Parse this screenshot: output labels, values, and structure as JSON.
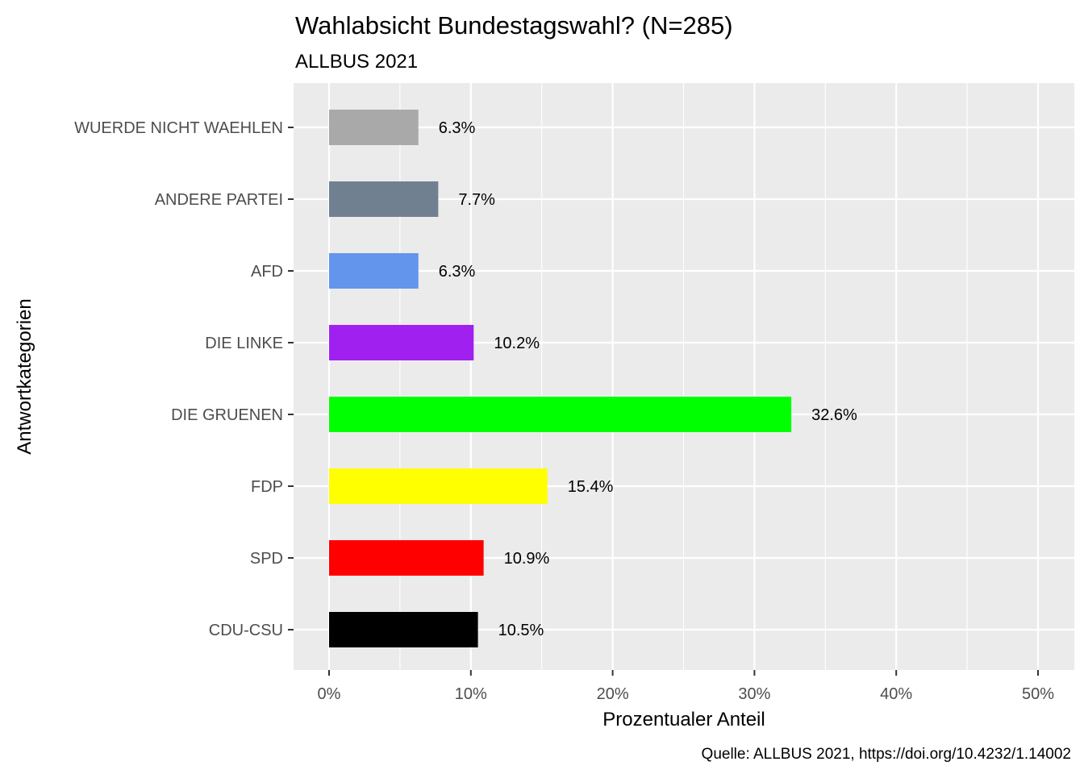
{
  "chart_data": {
    "type": "bar",
    "orientation": "horizontal",
    "title": "Wahlabsicht Bundestagswahl? (N=285)",
    "subtitle": "ALLBUS 2021",
    "xlabel": "Prozentualer Anteil",
    "ylabel": "Antwortkategorien",
    "caption": "Quelle: ALLBUS 2021, https://doi.org/10.4232/1.14002",
    "xlim": [
      0,
      0.5
    ],
    "x_ticks": [
      0,
      0.1,
      0.2,
      0.3,
      0.4,
      0.5
    ],
    "x_tick_labels": [
      "0%",
      "10%",
      "20%",
      "30%",
      "40%",
      "50%"
    ],
    "grid": true,
    "legend": "none",
    "categories": [
      "WUERDE NICHT WAEHLEN",
      "ANDERE PARTEI",
      "AFD",
      "DIE LINKE",
      "DIE GRUENEN",
      "FDP",
      "SPD",
      "CDU-CSU"
    ],
    "values": [
      0.063,
      0.077,
      0.063,
      0.102,
      0.326,
      0.154,
      0.109,
      0.105
    ],
    "data_labels": [
      "6.3%",
      "7.7%",
      "6.3%",
      "10.2%",
      "32.6%",
      "15.4%",
      "10.9%",
      "10.5%"
    ],
    "colors": [
      "#a9a9a9",
      "#708090",
      "#6495ed",
      "#a020f0",
      "#00ff00",
      "#ffff00",
      "#ff0000",
      "#000000"
    ],
    "panel_background": "#ebebeb",
    "grid_color": "#ffffff"
  }
}
